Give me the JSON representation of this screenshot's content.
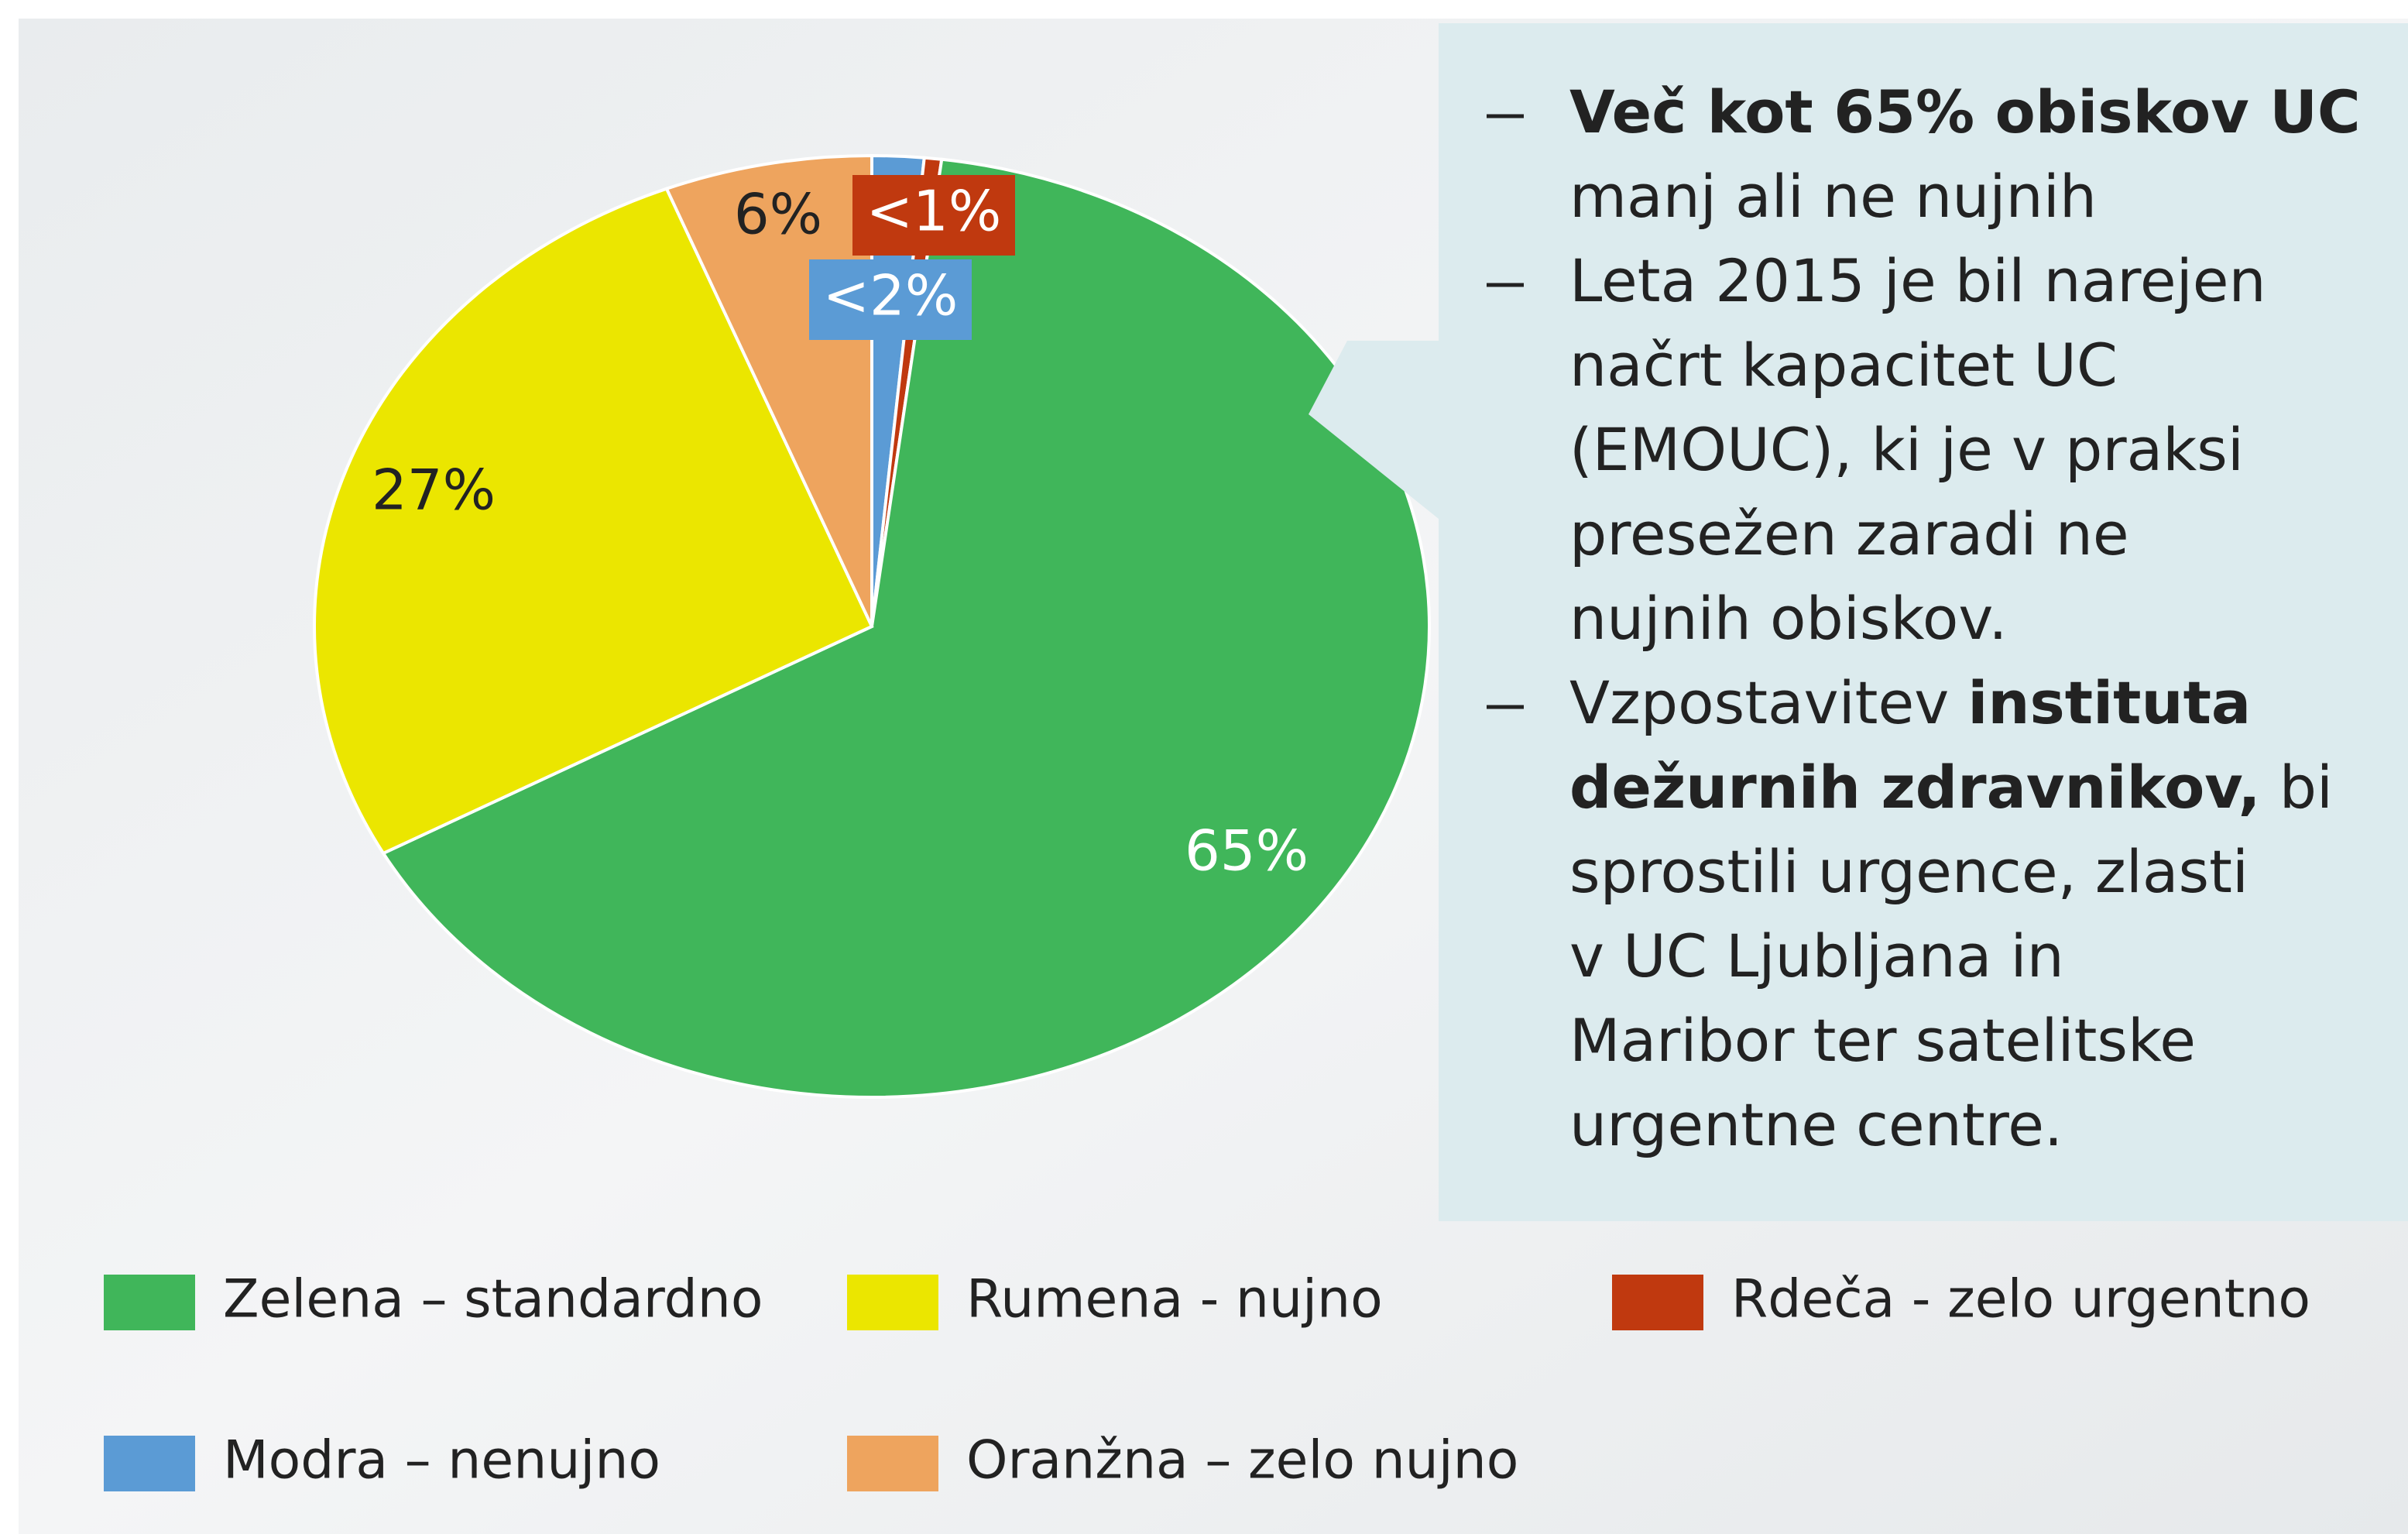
{
  "chart_data": {
    "type": "pie",
    "categories": [
      "Modra – nenujno",
      "Rdeča - zelo urgentno",
      "Zelena – standardno",
      "Rumena - nujno",
      "Oranžna – zelo nujno"
    ],
    "values": [
      1.5,
      0.5,
      65,
      27,
      6
    ],
    "value_labels": [
      "<2%",
      "<1%",
      "65%",
      "27%",
      "6%"
    ],
    "colors": [
      "#5b9bd5",
      "#c0390f",
      "#40b65a",
      "#ebe600",
      "#eea45e"
    ],
    "legend": "bottom"
  },
  "notes": [
    {
      "lines": [
        [
          {
            "text": "Več kot 65% obiskov UC",
            "bold": true
          }
        ],
        [
          {
            "text": "manj ali ne nujnih",
            "bold": false
          }
        ]
      ]
    },
    {
      "lines": [
        [
          {
            "text": "Leta 2015 je bil narejen",
            "bold": false
          }
        ],
        [
          {
            "text": "načrt kapacitet UC",
            "bold": false
          }
        ],
        [
          {
            "text": "(EMOUC), ki je v praksi",
            "bold": false
          }
        ],
        [
          {
            "text": "presežen zaradi ne",
            "bold": false
          }
        ],
        [
          {
            "text": "nujnih obiskov.",
            "bold": false
          }
        ]
      ]
    },
    {
      "lines": [
        [
          {
            "text": "Vzpostavitev ",
            "bold": false
          },
          {
            "text": "instituta",
            "bold": true
          }
        ],
        [
          {
            "text": "dežurnih zdravnikov,",
            "bold": true
          },
          {
            "text": " bi",
            "bold": false
          }
        ],
        [
          {
            "text": "sprostili urgence, zlasti",
            "bold": false
          }
        ],
        [
          {
            "text": "v UC Ljubljana in",
            "bold": false
          }
        ],
        [
          {
            "text": "Maribor ter satelitske",
            "bold": false
          }
        ],
        [
          {
            "text": "urgentne centre.",
            "bold": false
          }
        ]
      ]
    }
  ]
}
